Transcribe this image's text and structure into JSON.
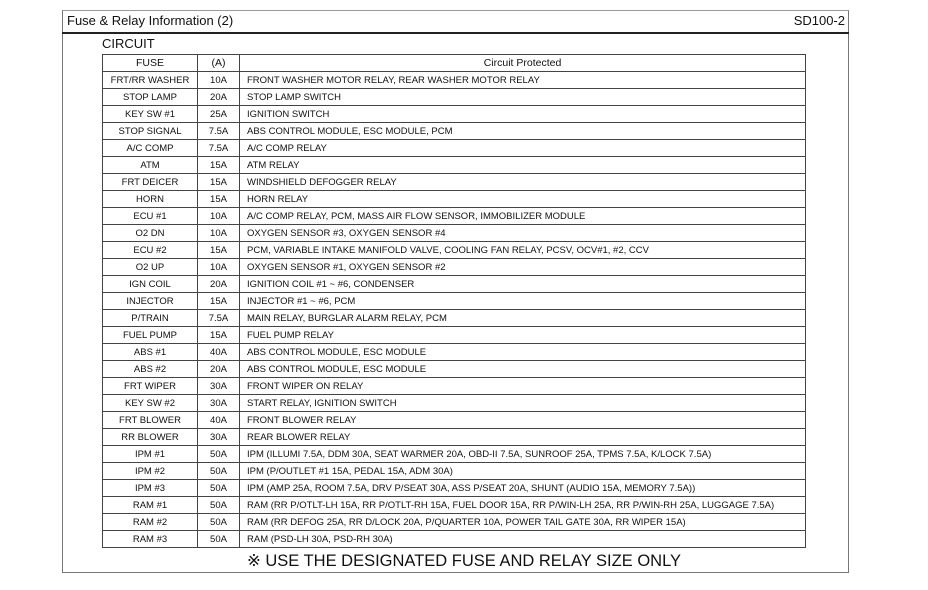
{
  "header": {
    "title": "Fuse & Relay Information (2)",
    "code": "SD100-2"
  },
  "section": "CIRCUIT",
  "table": {
    "columns": [
      "FUSE",
      "(A)",
      "Circuit Protected"
    ],
    "rows": [
      [
        "FRT/RR WASHER",
        "10A",
        "FRONT WASHER MOTOR RELAY, REAR WASHER MOTOR RELAY"
      ],
      [
        "STOP LAMP",
        "20A",
        "STOP LAMP SWITCH"
      ],
      [
        "KEY SW #1",
        "25A",
        "IGNITION SWITCH"
      ],
      [
        "STOP SIGNAL",
        "7.5A",
        "ABS CONTROL MODULE, ESC MODULE, PCM"
      ],
      [
        "A/C COMP",
        "7.5A",
        "A/C COMP RELAY"
      ],
      [
        "ATM",
        "15A",
        "ATM RELAY"
      ],
      [
        "FRT DEICER",
        "15A",
        "WINDSHIELD DEFOGGER RELAY"
      ],
      [
        "HORN",
        "15A",
        "HORN RELAY"
      ],
      [
        "ECU #1",
        "10A",
        "A/C COMP RELAY, PCM, MASS AIR FLOW SENSOR, IMMOBILIZER MODULE"
      ],
      [
        "O2 DN",
        "10A",
        "OXYGEN SENSOR #3, OXYGEN SENSOR #4"
      ],
      [
        "ECU #2",
        "15A",
        "PCM, VARIABLE INTAKE MANIFOLD VALVE, COOLING FAN RELAY, PCSV, OCV#1, #2, CCV"
      ],
      [
        "O2 UP",
        "10A",
        "OXYGEN SENSOR #1, OXYGEN SENSOR #2"
      ],
      [
        "IGN COIL",
        "20A",
        "IGNITION COIL #1 ~ #6, CONDENSER"
      ],
      [
        "INJECTOR",
        "15A",
        "INJECTOR #1 ~ #6, PCM"
      ],
      [
        "P/TRAIN",
        "7.5A",
        "MAIN RELAY, BURGLAR ALARM RELAY, PCM"
      ],
      [
        "FUEL PUMP",
        "15A",
        "FUEL PUMP RELAY"
      ],
      [
        "ABS #1",
        "40A",
        "ABS CONTROL MODULE, ESC MODULE"
      ],
      [
        "ABS #2",
        "20A",
        "ABS CONTROL MODULE, ESC MODULE"
      ],
      [
        "FRT WIPER",
        "30A",
        "FRONT WIPER ON RELAY"
      ],
      [
        "KEY SW #2",
        "30A",
        "START RELAY, IGNITION SWITCH"
      ],
      [
        "FRT BLOWER",
        "40A",
        "FRONT BLOWER RELAY"
      ],
      [
        "RR BLOWER",
        "30A",
        "REAR BLOWER RELAY"
      ],
      [
        "IPM #1",
        "50A",
        "IPM (ILLUMI 7.5A, DDM 30A, SEAT WARMER 20A, OBD-II 7.5A, SUNROOF 25A, TPMS 7.5A, K/LOCK 7.5A)"
      ],
      [
        "IPM #2",
        "50A",
        "IPM (P/OUTLET #1 15A, PEDAL 15A, ADM 30A)"
      ],
      [
        "IPM #3",
        "50A",
        "IPM (AMP 25A, ROOM 7.5A, DRV P/SEAT 30A, ASS P/SEAT 20A, SHUNT (AUDIO 15A, MEMORY 7.5A))"
      ],
      [
        "RAM #1",
        "50A",
        "RAM (RR P/OTLT-LH 15A, RR P/OTLT-RH 15A, FUEL DOOR 15A, RR P/WIN-LH 25A, RR P/WIN-RH 25A, LUGGAGE 7.5A)"
      ],
      [
        "RAM #2",
        "50A",
        "RAM (RR DEFOG 25A, RR D/LOCK 20A, P/QUARTER 10A, POWER TAIL GATE 30A, RR WIPER 15A)"
      ],
      [
        "RAM #3",
        "50A",
        "RAM (PSD-LH 30A, PSD-RH 30A)"
      ]
    ]
  },
  "note": "※ USE THE DESIGNATED FUSE AND RELAY SIZE ONLY"
}
